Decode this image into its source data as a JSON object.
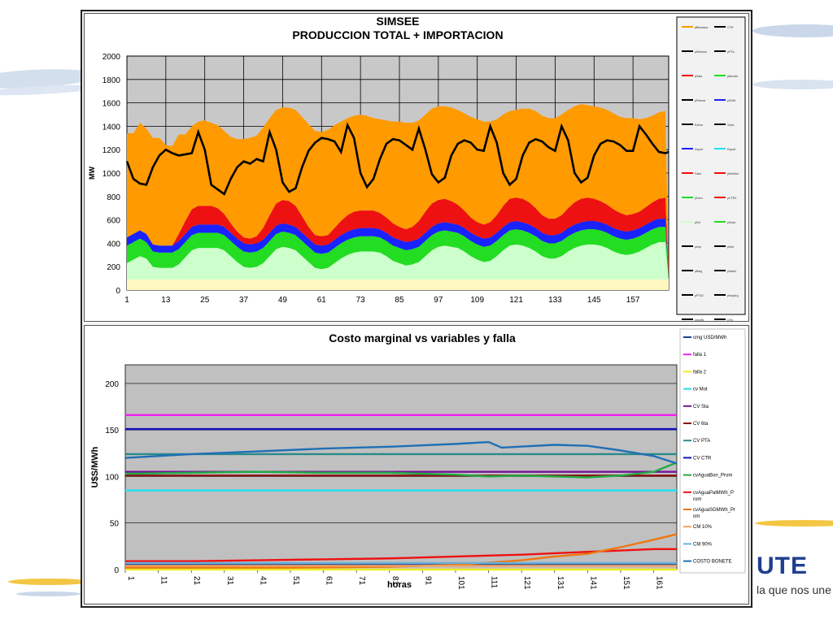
{
  "brand": {
    "logo_text": "UTE",
    "slogan": "la que nos une"
  },
  "chart_data": [
    {
      "type": "area",
      "title": "SIMSEE",
      "subtitle": "PRODUCCION TOTAL + IMPORTACION",
      "xlabel": "",
      "ylabel": "MW",
      "ylim": [
        0,
        2000
      ],
      "yticks": [
        0,
        200,
        400,
        600,
        800,
        1000,
        1200,
        1400,
        1600,
        1800,
        2000
      ],
      "xlim": [
        1,
        168
      ],
      "xticks": [
        1,
        13,
        25,
        37,
        49,
        61,
        73,
        85,
        97,
        109,
        121,
        133,
        145,
        157
      ],
      "grid": true,
      "legend_position": "right",
      "legend": [
        "pBiomasa",
        "CTR",
        "pMotores",
        "pPTA",
        "pSala",
        "pBonete",
        "pPalmar",
        "pSGM",
        "Eolica",
        "Solar",
        "Import",
        "Export",
        "Falla",
        "pEstMon",
        "pDem",
        "pCTR2",
        "pEol",
        "pSolar",
        "pImp",
        "pMot",
        "pBaig",
        "pSala2",
        "pPTA2",
        "pImpArg",
        "pImpBr",
        "pTer"
      ],
      "x": [
        1,
        3,
        5,
        7,
        9,
        11,
        13,
        15,
        17,
        19,
        21,
        23,
        25,
        27,
        29,
        31,
        33,
        35,
        37,
        39,
        41,
        43,
        45,
        47,
        49,
        51,
        53,
        55,
        57,
        59,
        61,
        63,
        65,
        67,
        69,
        71,
        73,
        75,
        77,
        79,
        81,
        83,
        85,
        87,
        89,
        91,
        93,
        95,
        97,
        99,
        101,
        103,
        105,
        107,
        109,
        111,
        113,
        115,
        117,
        119,
        121,
        123,
        125,
        127,
        129,
        131,
        133,
        135,
        137,
        139,
        141,
        143,
        145,
        147,
        149,
        151,
        153,
        155,
        157,
        159,
        161,
        163,
        165,
        167,
        168
      ],
      "series": [
        {
          "name": "",
          "color": "#fff7c0",
          "values": [
            90,
            90,
            90,
            90,
            90,
            90,
            90,
            90,
            90,
            90,
            90,
            90,
            90,
            90,
            90,
            90,
            90,
            90,
            90,
            90,
            90,
            90,
            90,
            90,
            90,
            90,
            90,
            90,
            90,
            90,
            90,
            90,
            90,
            90,
            90,
            90,
            90,
            90,
            90,
            90,
            90,
            90,
            90,
            90,
            90,
            90,
            90,
            90,
            90,
            90,
            90,
            90,
            90,
            90,
            90,
            90,
            90,
            90,
            90,
            90,
            90,
            90,
            90,
            90,
            90,
            90,
            90,
            90,
            90,
            90,
            90,
            90,
            90,
            90,
            90,
            90,
            90,
            90,
            90,
            90,
            90,
            90,
            90,
            90,
            90
          ]
        },
        {
          "name": "",
          "color": "#ccffcc",
          "values": [
            140,
            170,
            200,
            180,
            110,
            100,
            100,
            100,
            130,
            190,
            250,
            270,
            270,
            270,
            270,
            250,
            200,
            150,
            110,
            100,
            110,
            140,
            200,
            260,
            280,
            270,
            250,
            200,
            150,
            100,
            90,
            100,
            140,
            180,
            210,
            230,
            240,
            240,
            240,
            230,
            200,
            160,
            140,
            120,
            130,
            150,
            200,
            250,
            280,
            290,
            280,
            270,
            240,
            200,
            170,
            150,
            160,
            200,
            250,
            290,
            300,
            290,
            270,
            240,
            200,
            180,
            180,
            200,
            240,
            270,
            290,
            300,
            300,
            290,
            270,
            240,
            220,
            210,
            220,
            240,
            270,
            300,
            320,
            320,
            0
          ]
        },
        {
          "name": "",
          "color": "#22dd22",
          "values": [
            150,
            150,
            150,
            140,
            130,
            130,
            130,
            130,
            130,
            130,
            130,
            130,
            130,
            130,
            130,
            130,
            130,
            130,
            130,
            130,
            130,
            130,
            130,
            130,
            130,
            130,
            130,
            130,
            130,
            130,
            130,
            130,
            130,
            130,
            130,
            130,
            130,
            130,
            130,
            130,
            130,
            130,
            130,
            130,
            130,
            130,
            130,
            130,
            130,
            130,
            130,
            130,
            130,
            130,
            130,
            130,
            130,
            130,
            130,
            130,
            130,
            130,
            130,
            130,
            130,
            130,
            130,
            130,
            130,
            130,
            130,
            130,
            130,
            130,
            130,
            130,
            130,
            130,
            130,
            130,
            130,
            130,
            130,
            130,
            0
          ]
        },
        {
          "name": "",
          "color": "#1a22ff",
          "values": [
            70,
            70,
            70,
            70,
            60,
            60,
            60,
            60,
            70,
            70,
            70,
            70,
            70,
            70,
            70,
            70,
            70,
            70,
            70,
            70,
            70,
            70,
            70,
            70,
            70,
            70,
            70,
            70,
            70,
            70,
            70,
            70,
            70,
            70,
            70,
            70,
            70,
            70,
            70,
            70,
            70,
            70,
            70,
            70,
            70,
            70,
            70,
            70,
            70,
            70,
            70,
            70,
            70,
            70,
            70,
            70,
            70,
            70,
            70,
            70,
            70,
            70,
            70,
            70,
            70,
            70,
            70,
            70,
            70,
            70,
            70,
            70,
            70,
            70,
            70,
            70,
            70,
            70,
            70,
            70,
            70,
            70,
            70,
            70,
            0
          ]
        },
        {
          "name": "",
          "color": "#ee1111",
          "values": [
            0,
            0,
            0,
            0,
            0,
            0,
            0,
            0,
            60,
            110,
            150,
            160,
            160,
            160,
            140,
            110,
            80,
            60,
            50,
            50,
            60,
            100,
            150,
            190,
            200,
            200,
            180,
            140,
            100,
            80,
            80,
            80,
            100,
            120,
            140,
            150,
            150,
            150,
            150,
            140,
            130,
            120,
            110,
            110,
            120,
            150,
            180,
            200,
            200,
            200,
            190,
            170,
            150,
            130,
            120,
            120,
            130,
            150,
            180,
            200,
            200,
            200,
            190,
            170,
            150,
            140,
            140,
            150,
            170,
            190,
            200,
            200,
            190,
            180,
            170,
            160,
            150,
            140,
            140,
            140,
            150,
            160,
            170,
            180,
            0
          ]
        },
        {
          "name": "",
          "color": "#ff9a00",
          "values": [
            890,
            860,
            920,
            900,
            910,
            920,
            860,
            850,
            850,
            740,
            710,
            720,
            730,
            710,
            710,
            710,
            740,
            790,
            840,
            860,
            860,
            860,
            830,
            800,
            790,
            800,
            820,
            850,
            880,
            890,
            890,
            900,
            880,
            850,
            830,
            820,
            820,
            810,
            790,
            800,
            830,
            870,
            900,
            910,
            890,
            860,
            830,
            810,
            800,
            790,
            800,
            810,
            830,
            860,
            880,
            880,
            860,
            820,
            780,
            750,
            750,
            770,
            800,
            830,
            850,
            860,
            860,
            860,
            840,
            820,
            810,
            790,
            790,
            800,
            810,
            820,
            820,
            830,
            820,
            790,
            760,
            740,
            740,
            740,
            0
          ]
        }
      ],
      "line_series": {
        "name": "",
        "color": "#000000",
        "x": [
          1,
          3,
          5,
          7,
          9,
          11,
          13,
          15,
          17,
          19,
          21,
          23,
          25,
          27,
          29,
          31,
          33,
          35,
          37,
          39,
          41,
          43,
          45,
          47,
          49,
          51,
          53,
          55,
          57,
          59,
          61,
          63,
          65,
          67,
          69,
          71,
          73,
          75,
          77,
          79,
          81,
          83,
          85,
          87,
          89,
          91,
          93,
          95,
          97,
          99,
          101,
          103,
          105,
          107,
          109,
          111,
          113,
          115,
          117,
          119,
          121,
          123,
          125,
          127,
          129,
          131,
          133,
          135,
          137,
          139,
          141,
          143,
          145,
          147,
          149,
          151,
          153,
          155,
          157,
          159,
          161,
          163,
          165,
          167,
          168
        ],
        "values": [
          1100,
          950,
          910,
          900,
          1050,
          1150,
          1200,
          1170,
          1150,
          1160,
          1170,
          1350,
          1200,
          900,
          860,
          820,
          950,
          1050,
          1100,
          1080,
          1120,
          1100,
          1350,
          1200,
          920,
          840,
          870,
          1050,
          1190,
          1260,
          1300,
          1290,
          1270,
          1180,
          1410,
          1300,
          1000,
          880,
          950,
          1120,
          1250,
          1290,
          1280,
          1240,
          1200,
          1380,
          1200,
          990,
          920,
          960,
          1150,
          1250,
          1280,
          1260,
          1200,
          1190,
          1400,
          1260,
          1000,
          900,
          950,
          1150,
          1260,
          1290,
          1270,
          1220,
          1190,
          1400,
          1280,
          1000,
          920,
          960,
          1150,
          1250,
          1280,
          1270,
          1240,
          1190,
          1190,
          1400,
          1330,
          1250,
          1180,
          1170,
          1180
        ]
      }
    },
    {
      "type": "line",
      "title": "Costo marginal  vs variables y falla",
      "xlabel": "horas",
      "ylabel": "U$S/MWh",
      "ylim": [
        0,
        220
      ],
      "yticks": [
        0,
        50,
        100,
        150,
        200
      ],
      "xlim": [
        1,
        168
      ],
      "xticks": [
        1,
        11,
        21,
        31,
        41,
        51,
        61,
        71,
        81,
        91,
        101,
        111,
        121,
        131,
        141,
        151,
        161
      ],
      "grid": true,
      "legend_position": "right",
      "series": [
        {
          "name": "cmg USD/MWh",
          "color": "#1f3f8f",
          "x": [
            1,
            168
          ],
          "values": [
            5,
            5
          ]
        },
        {
          "name": "falla 1",
          "color": "#ee22ee",
          "x": [
            1,
            168
          ],
          "values": [
            166,
            166
          ]
        },
        {
          "name": "falla 2",
          "color": "#eeee22",
          "x": [
            1,
            168
          ],
          "values": [
            0,
            0
          ]
        },
        {
          "name": "cv Mot",
          "color": "#22e0ee",
          "x": [
            1,
            168
          ],
          "values": [
            85,
            85
          ]
        },
        {
          "name": "CV Sta",
          "color": "#771199",
          "x": [
            1,
            168
          ],
          "values": [
            105,
            105
          ]
        },
        {
          "name": "CV 6ta",
          "color": "#881111",
          "x": [
            1,
            168
          ],
          "values": [
            101,
            101
          ]
        },
        {
          "name": "CV PTA",
          "color": "#2a8a8a",
          "x": [
            1,
            168
          ],
          "values": [
            124,
            124
          ]
        },
        {
          "name": "CV CTR",
          "color": "#1111bb",
          "x": [
            1,
            168
          ],
          "values": [
            151,
            151
          ]
        },
        {
          "name": "cvAguaBon_Prom",
          "color": "#22aa44",
          "x": [
            1,
            21,
            41,
            61,
            81,
            101,
            111,
            121,
            131,
            141,
            151,
            161,
            168
          ],
          "values": [
            103,
            104,
            105,
            104,
            104,
            102,
            100,
            101,
            100,
            99,
            101,
            105,
            115
          ]
        },
        {
          "name": "cvAguaPalMWh_Prom",
          "color": "#ee1111",
          "x": [
            1,
            21,
            41,
            61,
            81,
            101,
            121,
            141,
            161,
            168
          ],
          "values": [
            9,
            9,
            10,
            11,
            12,
            14,
            16,
            19,
            22,
            22
          ]
        },
        {
          "name": "cvAguaSGMWh_Prom",
          "color": "#ee7711",
          "x": [
            1,
            51,
            81,
            101,
            121,
            131,
            141,
            151,
            161,
            168
          ],
          "values": [
            2,
            2,
            3,
            5,
            10,
            14,
            17,
            24,
            32,
            38
          ]
        },
        {
          "name": "CM 10%",
          "color": "#f4a460",
          "x": [
            1,
            168
          ],
          "values": [
            4,
            4
          ]
        },
        {
          "name": "CM 90%",
          "color": "#6ab0d8",
          "x": [
            1,
            168
          ],
          "values": [
            7,
            7
          ]
        },
        {
          "name": "COSTO BONETE",
          "color": "#1f6fb5",
          "x": [
            1,
            21,
            41,
            61,
            81,
            101,
            111,
            115,
            131,
            141,
            151,
            161,
            168
          ],
          "values": [
            120,
            124,
            127,
            130,
            132,
            135,
            137,
            131,
            134,
            133,
            128,
            122,
            114
          ]
        }
      ]
    }
  ]
}
